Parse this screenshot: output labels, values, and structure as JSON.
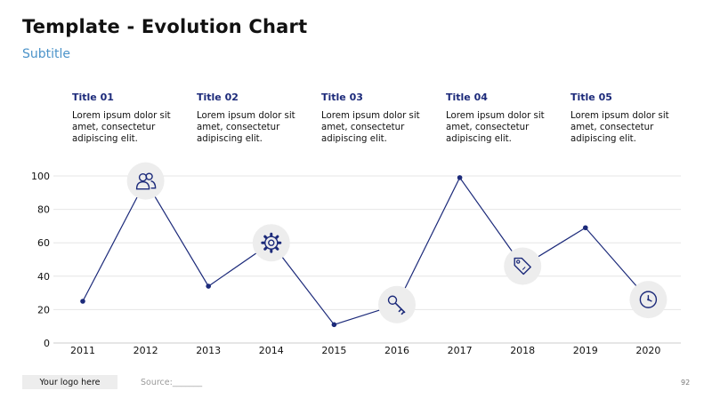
{
  "header": {
    "title": "Template - Evolution Chart",
    "subtitle": "Subtitle"
  },
  "columns": [
    {
      "title": "Title 01",
      "text": "Lorem ipsum dolor sit amet, consectetur adipiscing elit."
    },
    {
      "title": "Title 02",
      "text": "Lorem ipsum dolor sit amet, consectetur adipiscing elit."
    },
    {
      "title": "Title 03",
      "text": "Lorem ipsum dolor sit amet, consectetur adipiscing elit."
    },
    {
      "title": "Title 04",
      "text": "Lorem ipsum dolor sit amet, consectetur adipiscing elit."
    },
    {
      "title": "Title 05",
      "text": "Lorem ipsum dolor sit amet, consectetur adipiscing elit."
    }
  ],
  "chart_data": {
    "type": "line",
    "x": [
      "2011",
      "2012",
      "2013",
      "2014",
      "2015",
      "2016",
      "2017",
      "2018",
      "2019",
      "2020"
    ],
    "series": [
      {
        "values": [
          25,
          97,
          34,
          60,
          11,
          23,
          99,
          46,
          69,
          26
        ]
      }
    ],
    "ylim": [
      0,
      100
    ],
    "yticks": [
      0,
      20,
      40,
      60,
      80,
      100
    ],
    "grid": true,
    "line_color": "#1c2a7a",
    "grid_color": "#e6e6e6",
    "icon_markers": [
      {
        "x": "2012",
        "icon": "users-icon"
      },
      {
        "x": "2014",
        "icon": "gear-icon"
      },
      {
        "x": "2016",
        "icon": "key-icon"
      },
      {
        "x": "2018",
        "icon": "tag-icon"
      },
      {
        "x": "2020",
        "icon": "clock-icon"
      }
    ]
  },
  "footer": {
    "logo_text": "Your logo here",
    "source": "Source:_______",
    "page_number": "92"
  }
}
